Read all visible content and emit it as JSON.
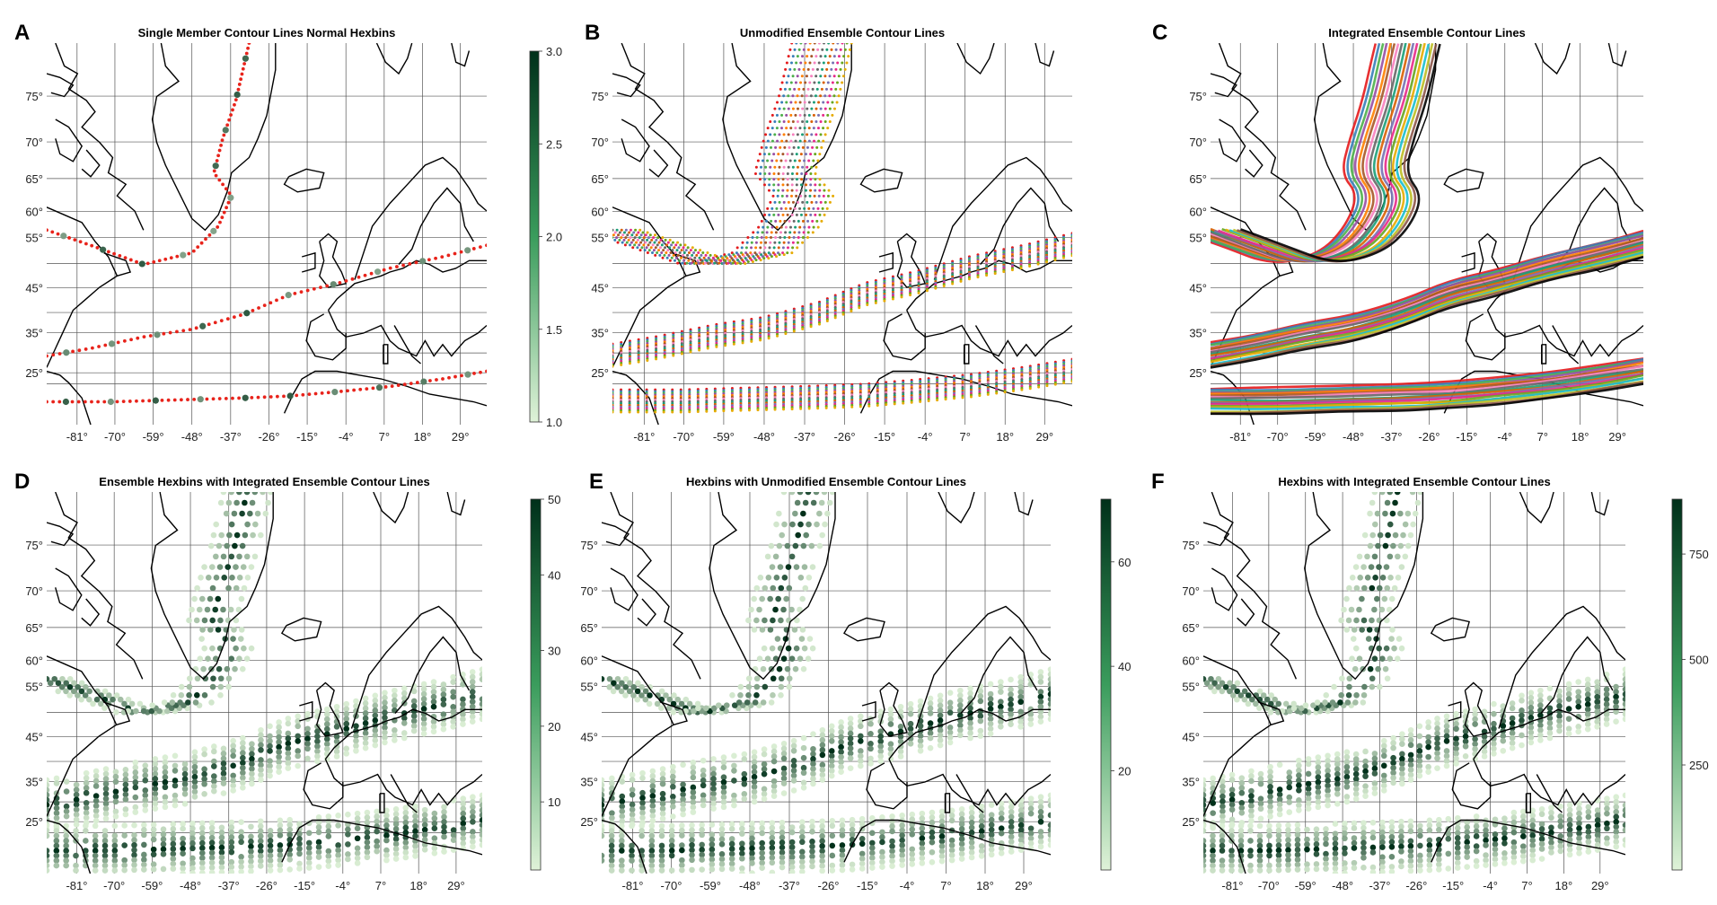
{
  "figure": {
    "panels": [
      {
        "id": "A",
        "letter": "A",
        "title": "Single Member Contour Lines Normal Hexbins",
        "kind": "points_red_green",
        "colorbar": {
          "ticks": [
            "1.0",
            "1.5",
            "2.0",
            "2.5",
            "3.0"
          ],
          "min": 1.0,
          "max": 3.0
        }
      },
      {
        "id": "B",
        "letter": "B",
        "title": "Unmodified Ensemble Contour Lines",
        "kind": "points_multicolor",
        "colorbar": null
      },
      {
        "id": "C",
        "letter": "C",
        "title": "Integrated Ensemble Contour Lines",
        "kind": "lines_multicolor",
        "colorbar": null
      },
      {
        "id": "D",
        "letter": "D",
        "title": "Ensemble Hexbins with Integrated Ensemble Contour Lines",
        "kind": "hexbin",
        "colorbar": {
          "ticks": [
            "10",
            "20",
            "30",
            "40",
            "50"
          ],
          "min": 1,
          "max": 50
        }
      },
      {
        "id": "E",
        "letter": "E",
        "title": "Hexbins with Unmodified Ensemble Contour Lines",
        "kind": "hexbin",
        "colorbar": {
          "ticks": [
            "20",
            "40",
            "60"
          ],
          "min": 1,
          "max": 72
        }
      },
      {
        "id": "F",
        "letter": "F",
        "title": "Hexbins with Integrated Ensemble Contour Lines",
        "kind": "hexbin",
        "colorbar": {
          "ticks": [
            "250",
            "500",
            "750"
          ],
          "min": 1,
          "max": 880
        }
      }
    ],
    "x_ticks": [
      "-81°",
      "-70°",
      "-59°",
      "-48°",
      "-37°",
      "-26°",
      "-15°",
      "-4°",
      "7°",
      "18°",
      "29°"
    ],
    "y_ticks": [
      "75°",
      "70°",
      "65°",
      "60°",
      "55°",
      "45°",
      "35°",
      "25°"
    ],
    "colors": {
      "accent_red": "#e8231b",
      "hex_dark": "#00301a",
      "hex_light": "#dff2d8",
      "coast": "#000000",
      "grid": "#555555"
    }
  },
  "chart_data": [
    {
      "type": "scatter",
      "panel": "A",
      "title": "Single Member Contour Lines Normal Hexbins",
      "xlim": [
        -90,
        40
      ],
      "ylim": [
        22,
        82
      ],
      "x_ticks": [
        -81,
        -70,
        -59,
        -48,
        -37,
        -26,
        -15,
        -4,
        7,
        18,
        29
      ],
      "y_ticks": [
        25,
        35,
        45,
        55,
        60,
        65,
        70,
        75
      ],
      "colorbar": {
        "label": "",
        "range": [
          1.0,
          3.0
        ]
      },
      "series": [
        {
          "values": [
            [
              -90,
              59
            ],
            [
              -81,
              57
            ],
            [
              -70,
              54.5
            ],
            [
              -59,
              53
            ],
            [
              -48,
              55
            ],
            [
              -37,
              58
            ],
            [
              -32,
              63
            ],
            [
              -30,
              66
            ],
            [
              -34,
              70
            ],
            [
              -27,
              75
            ],
            [
              -24,
              80
            ]
          ]
        },
        {
          "values": [
            [
              -90,
              31
            ],
            [
              -81,
              33
            ],
            [
              -70,
              35.5
            ],
            [
              -59,
              37
            ],
            [
              -48,
              38
            ],
            [
              -37,
              39.5
            ],
            [
              -26,
              42
            ],
            [
              -15,
              45
            ],
            [
              -4,
              46
            ],
            [
              7,
              47.5
            ],
            [
              18,
              49
            ],
            [
              29,
              51
            ],
            [
              40,
              55
            ]
          ]
        },
        {
          "values": [
            [
              -90,
              23
            ],
            [
              -81,
              23
            ],
            [
              -70,
              23.5
            ],
            [
              -59,
              24.5
            ],
            [
              -48,
              25
            ],
            [
              -37,
              25.5
            ],
            [
              -26,
              25.5
            ],
            [
              -15,
              25.5
            ],
            [
              -4,
              26
            ],
            [
              7,
              27
            ],
            [
              18,
              28
            ],
            [
              29,
              29
            ],
            [
              40,
              30
            ]
          ]
        }
      ]
    },
    {
      "type": "scatter",
      "panel": "B",
      "title": "Unmodified Ensemble Contour Lines",
      "xlim": [
        -90,
        40
      ],
      "ylim": [
        22,
        82
      ],
      "x_ticks": [
        -81,
        -70,
        -59,
        -48,
        -37,
        -26,
        -15,
        -4,
        7,
        18,
        29
      ],
      "y_ticks": [
        25,
        35,
        45,
        55,
        60,
        65,
        70,
        75
      ],
      "series": [
        {
          "values": [
            [
              -90,
              58
            ],
            [
              -59,
              53
            ],
            [
              -37,
              58
            ],
            [
              -26,
              70
            ],
            [
              -24,
              80
            ]
          ]
        },
        {
          "values": [
            [
              -90,
              31
            ],
            [
              -48,
              38
            ],
            [
              -4,
              46
            ],
            [
              40,
              53
            ]
          ]
        },
        {
          "values": [
            [
              -90,
              23.5
            ],
            [
              -26,
              25.5
            ],
            [
              40,
              30
            ]
          ]
        }
      ]
    },
    {
      "type": "line",
      "panel": "C",
      "title": "Integrated Ensemble Contour Lines",
      "xlim": [
        -90,
        40
      ],
      "ylim": [
        22,
        82
      ],
      "x_ticks": [
        -81,
        -70,
        -59,
        -48,
        -37,
        -26,
        -15,
        -4,
        7,
        18,
        29
      ],
      "y_ticks": [
        25,
        35,
        45,
        55,
        60,
        65,
        70,
        75
      ],
      "series": [
        {
          "values": [
            [
              -90,
              58
            ],
            [
              -59,
              53
            ],
            [
              -37,
              58
            ],
            [
              -26,
              70
            ],
            [
              -24,
              80
            ]
          ]
        },
        {
          "values": [
            [
              -90,
              31
            ],
            [
              -48,
              38
            ],
            [
              -4,
              46
            ],
            [
              40,
              53
            ]
          ]
        },
        {
          "values": [
            [
              -90,
              23.5
            ],
            [
              -26,
              25.5
            ],
            [
              40,
              30
            ]
          ]
        }
      ]
    },
    {
      "type": "heatmap",
      "panel": "D",
      "title": "Ensemble Hexbins with Integrated Ensemble Contour Lines",
      "xlim": [
        -90,
        40
      ],
      "ylim": [
        22,
        82
      ],
      "colorbar": {
        "label": "",
        "range": [
          1,
          50
        ],
        "ticks": [
          10,
          20,
          30,
          40,
          50
        ]
      },
      "x_ticks": [
        -81,
        -70,
        -59,
        -48,
        -37,
        -26,
        -15,
        -4,
        7,
        18,
        29
      ],
      "y_ticks": [
        25,
        35,
        45,
        55,
        60,
        65,
        70,
        75
      ]
    },
    {
      "type": "heatmap",
      "panel": "E",
      "title": "Hexbins with Unmodified Ensemble Contour Lines",
      "xlim": [
        -90,
        40
      ],
      "ylim": [
        22,
        82
      ],
      "colorbar": {
        "label": "",
        "range": [
          1,
          72
        ],
        "ticks": [
          20,
          40,
          60
        ]
      },
      "x_ticks": [
        -81,
        -70,
        -59,
        -48,
        -37,
        -26,
        -15,
        -4,
        7,
        18,
        29
      ],
      "y_ticks": [
        25,
        35,
        45,
        55,
        60,
        65,
        70,
        75
      ]
    },
    {
      "type": "heatmap",
      "panel": "F",
      "title": "Hexbins with Integrated Ensemble Contour Lines",
      "xlim": [
        -90,
        40
      ],
      "ylim": [
        22,
        82
      ],
      "colorbar": {
        "label": "",
        "range": [
          1,
          880
        ],
        "ticks": [
          250,
          500,
          750
        ]
      },
      "x_ticks": [
        -81,
        -70,
        -59,
        -48,
        -37,
        -26,
        -15,
        -4,
        7,
        18,
        29
      ],
      "y_ticks": [
        25,
        35,
        45,
        55,
        60,
        65,
        70,
        75
      ]
    }
  ]
}
